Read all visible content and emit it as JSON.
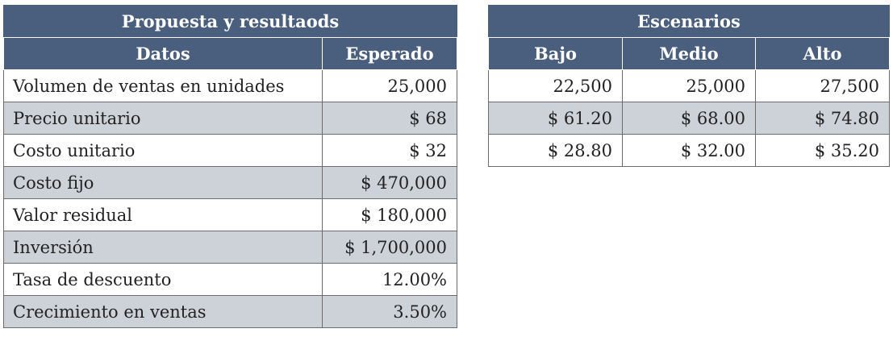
{
  "left_table": {
    "title": "Propuesta y resultaods",
    "col_datos": "Datos",
    "col_esperado": "Esperado",
    "rows": [
      {
        "label": "Volumen de ventas en unidades",
        "value": "25,000"
      },
      {
        "label": "Precio unitario",
        "value": "$ 68"
      },
      {
        "label": "Costo unitario",
        "value": "$ 32"
      },
      {
        "label": "Costo fijo",
        "value": "$ 470,000"
      },
      {
        "label": "Valor residual",
        "value": "$ 180,000"
      },
      {
        "label": "Inversión",
        "value": "$ 1,700,000"
      },
      {
        "label": "Tasa de descuento",
        "value": "12.00%"
      },
      {
        "label": "Crecimiento en ventas",
        "value": "3.50%"
      }
    ]
  },
  "right_table": {
    "title": "Escenarios",
    "col_bajo": "Bajo",
    "col_medio": "Medio",
    "col_alto": "Alto",
    "rows": [
      {
        "bajo": "22,500",
        "medio": "25,000",
        "alto": "27,500"
      },
      {
        "bajo": "$ 61.20",
        "medio": "$ 68.00",
        "alto": "$ 74.80"
      },
      {
        "bajo": "$ 28.80",
        "medio": "$ 32.00",
        "alto": "$ 35.20"
      }
    ]
  },
  "colors": {
    "header_bg": "#4a5f7e",
    "header_text": "#ffffff",
    "shaded_row": "#cdd1d8",
    "border": "#6c6c6c"
  }
}
